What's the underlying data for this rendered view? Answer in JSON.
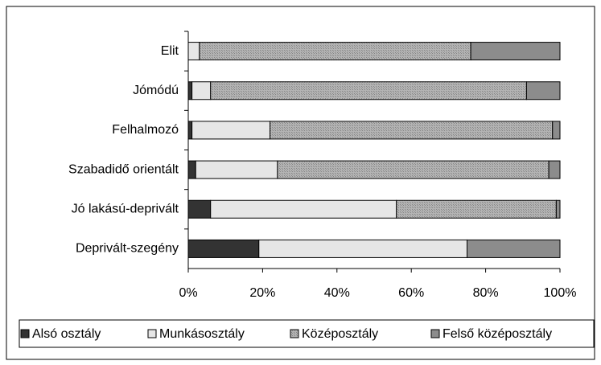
{
  "chart_data": {
    "type": "stacked_barh",
    "categories": [
      "Elit",
      "Jómódú",
      "Felhalmozó",
      "Szabadidő orientált",
      "Jó lakású-deprivált",
      "Deprivált-szegény"
    ],
    "series": [
      {
        "name": "Alsó osztály",
        "color": "#333333",
        "values": [
          0,
          1,
          1,
          2,
          6,
          19
        ]
      },
      {
        "name": "Munkásosztály",
        "color": "#e6e6e6",
        "values": [
          3,
          5,
          21,
          22,
          50,
          56
        ]
      },
      {
        "name": "Középosztály",
        "color": "#b4b4b4",
        "values": [
          73,
          85,
          76,
          73,
          43,
          0
        ]
      },
      {
        "name": "Felső középosztály",
        "color": "#8c8c8c",
        "values": [
          24,
          9,
          2,
          3,
          1,
          25
        ]
      }
    ],
    "xlim": [
      0,
      100
    ],
    "xticks": [
      {
        "value": 0,
        "label": "0%"
      },
      {
        "value": 20,
        "label": "20%"
      },
      {
        "value": 40,
        "label": "40%"
      },
      {
        "value": 60,
        "label": "60%"
      },
      {
        "value": 80,
        "label": "80%"
      },
      {
        "value": 100,
        "label": "100%"
      }
    ],
    "legend": "bottom"
  }
}
